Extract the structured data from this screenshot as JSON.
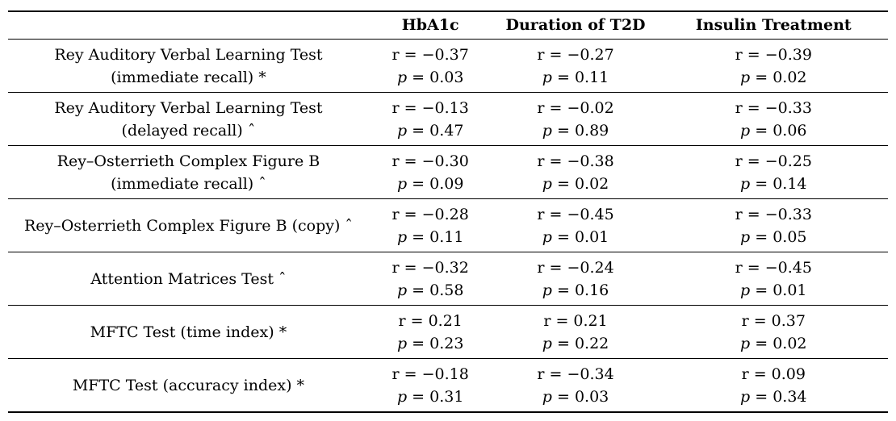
{
  "table": {
    "columns": {
      "label": "",
      "hba1c": "HbA1c",
      "duration": "Duration of T2D",
      "insulin": "Insulin Treatment"
    },
    "rows": [
      {
        "label_lines": [
          "Rey Auditory Verbal Learning Test",
          "(immediate recall) *"
        ],
        "hba1c": {
          "r": "r = −0.37",
          "p": "p = 0.03"
        },
        "duration": {
          "r": "r = −0.27",
          "p": "p = 0.11"
        },
        "insulin": {
          "r": "r = −0.39",
          "p": "p = 0.02"
        }
      },
      {
        "label_lines": [
          "Rey Auditory Verbal Learning Test",
          "(delayed recall) ˆ"
        ],
        "hba1c": {
          "r": "r = −0.13",
          "p": "p = 0.47"
        },
        "duration": {
          "r": "r = −0.02",
          "p": "p = 0.89"
        },
        "insulin": {
          "r": "r = −0.33",
          "p": "p = 0.06"
        }
      },
      {
        "label_lines": [
          "Rey–Osterrieth Complex Figure B",
          "(immediate recall) ˆ"
        ],
        "hba1c": {
          "r": "r = −0.30",
          "p": "p = 0.09"
        },
        "duration": {
          "r": "r = −0.38",
          "p": "p = 0.02"
        },
        "insulin": {
          "r": "r = −0.25",
          "p": "p = 0.14"
        }
      },
      {
        "label_lines": [
          "Rey–Osterrieth Complex Figure B (copy) ˆ"
        ],
        "hba1c": {
          "r": "r = −0.28",
          "p": "p = 0.11"
        },
        "duration": {
          "r": "r = −0.45",
          "p": "p = 0.01"
        },
        "insulin": {
          "r": "r = −0.33",
          "p": "p = 0.05"
        }
      },
      {
        "label_lines": [
          "Attention Matrices Test ˆ"
        ],
        "hba1c": {
          "r": "r = −0.32",
          "p": "p = 0.58"
        },
        "duration": {
          "r": "r = −0.24",
          "p": "p = 0.16"
        },
        "insulin": {
          "r": "r = −0.45",
          "p": "p = 0.01"
        }
      },
      {
        "label_lines": [
          "MFTC Test (time index) *"
        ],
        "hba1c": {
          "r": "r = 0.21",
          "p": "p = 0.23"
        },
        "duration": {
          "r": "r = 0.21",
          "p": "p = 0.22"
        },
        "insulin": {
          "r": "r = 0.37",
          "p": "p = 0.02"
        }
      },
      {
        "label_lines": [
          "MFTC Test (accuracy index) *"
        ],
        "hba1c": {
          "r": "r = −0.18",
          "p": "p = 0.31"
        },
        "duration": {
          "r": "r = −0.34",
          "p": "p = 0.03"
        },
        "insulin": {
          "r": "r = 0.09",
          "p": "p = 0.34"
        }
      }
    ]
  }
}
